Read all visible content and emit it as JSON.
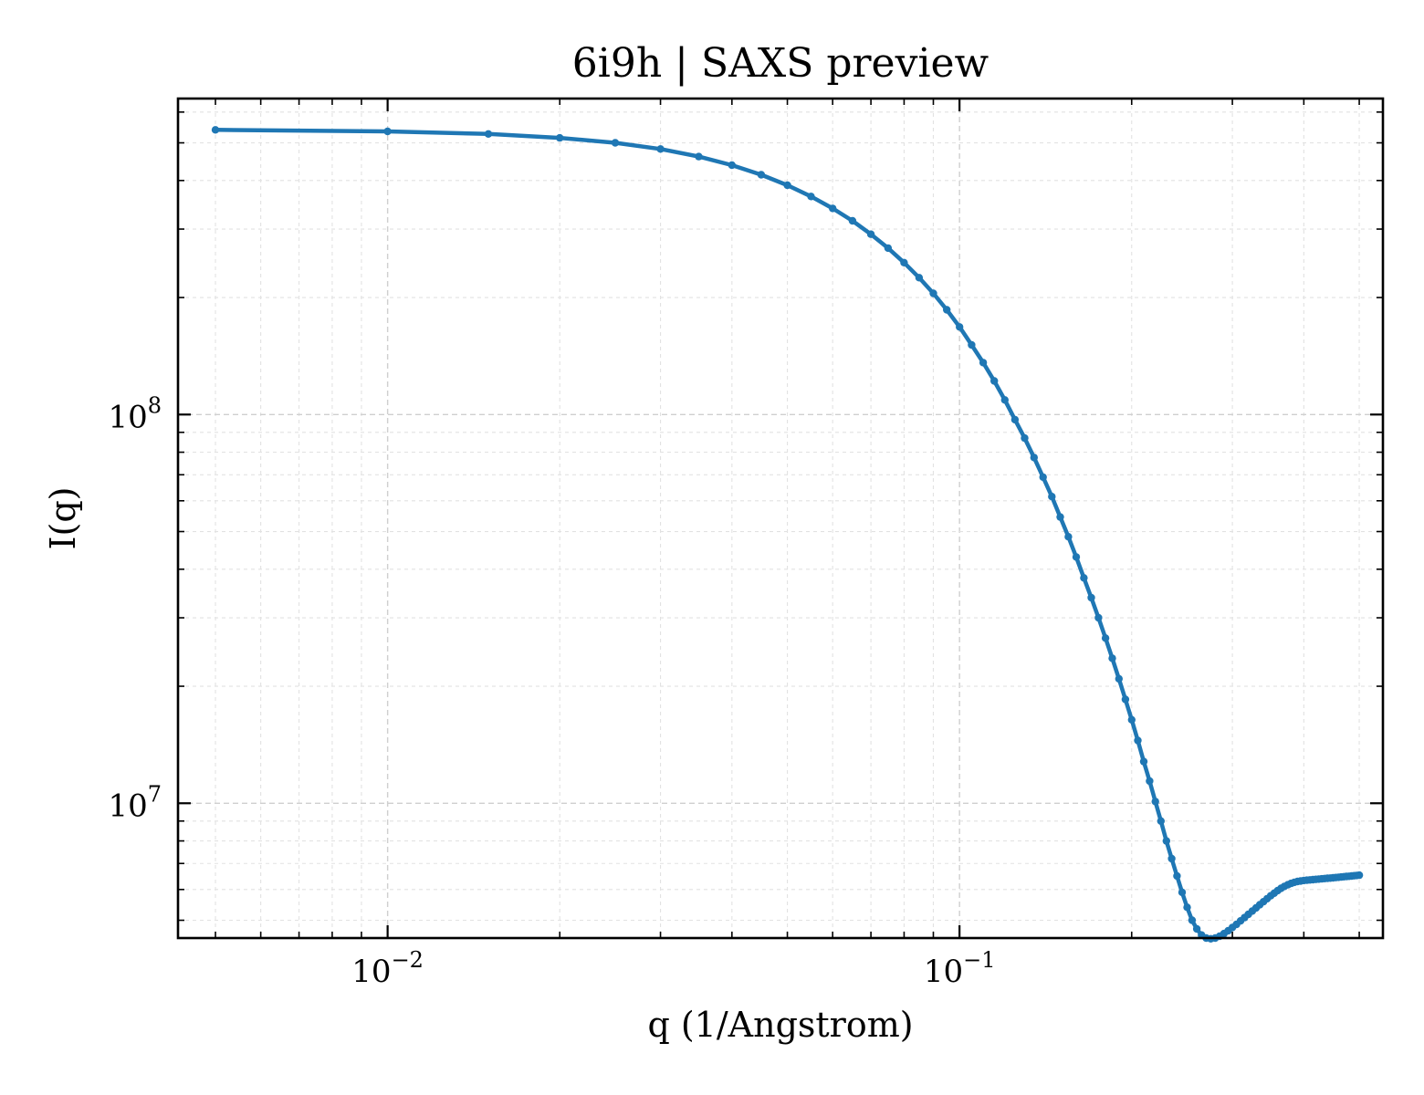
{
  "chart_data": {
    "type": "line",
    "title": "6i9h | SAXS preview",
    "xlabel": "q (1/Angstrom)",
    "ylabel": "I(q)",
    "xscale": "log",
    "yscale": "log",
    "xlim": [
      0.0043,
      0.55
    ],
    "ylim": [
      4500000,
      650000000
    ],
    "grid": true,
    "color": "#1f77b4",
    "x_ticks": [
      {
        "value": 0.01,
        "base": "10",
        "exp": "−2"
      },
      {
        "value": 0.1,
        "base": "10",
        "exp": "−1"
      }
    ],
    "y_ticks": [
      {
        "value": 10000000,
        "base": "10",
        "exp": "7"
      },
      {
        "value": 100000000,
        "base": "10",
        "exp": "8"
      }
    ],
    "series": [
      {
        "x": [
          0.005,
          0.01,
          0.015,
          0.02,
          0.025,
          0.03,
          0.035,
          0.04,
          0.045,
          0.05,
          0.055,
          0.06,
          0.065,
          0.07,
          0.075,
          0.08,
          0.085,
          0.09,
          0.095,
          0.1,
          0.105,
          0.11,
          0.115,
          0.12,
          0.125,
          0.13,
          0.135,
          0.14,
          0.145,
          0.15,
          0.155,
          0.16,
          0.165,
          0.17,
          0.175,
          0.18,
          0.185,
          0.19,
          0.195,
          0.2,
          0.205,
          0.21,
          0.215,
          0.22,
          0.225,
          0.23,
          0.235,
          0.24,
          0.245,
          0.25,
          0.255,
          0.26,
          0.265,
          0.27,
          0.275,
          0.28,
          0.285,
          0.29,
          0.295,
          0.3,
          0.305,
          0.31,
          0.315,
          0.32,
          0.325,
          0.33,
          0.335,
          0.34,
          0.345,
          0.35,
          0.355,
          0.36,
          0.365,
          0.37,
          0.375,
          0.38,
          0.385,
          0.39,
          0.395,
          0.4,
          0.405,
          0.41,
          0.415,
          0.42,
          0.425,
          0.43,
          0.435,
          0.44,
          0.445,
          0.45,
          0.455,
          0.46,
          0.465,
          0.47,
          0.475,
          0.48,
          0.485,
          0.49,
          0.495,
          0.5
        ],
        "y": [
          540000000,
          535000000,
          527000000,
          515000000,
          500000000,
          482000000,
          461000000,
          438000000,
          414000000,
          389000000,
          364000000,
          339000000,
          315000000,
          291000000,
          268000000,
          246000000,
          225000000,
          205000000,
          186000000,
          168000000,
          151000000,
          136000000,
          122000000,
          109000000,
          97000000,
          87000000,
          77500000,
          69000000,
          61500000,
          54500000,
          48500000,
          43000000,
          38000000,
          33800000,
          30000000,
          26600000,
          23600000,
          20900000,
          18500000,
          16400000,
          14500000,
          12800000,
          11400000,
          10100000,
          9000000,
          8000000,
          7200000,
          6500000,
          5900000,
          5400000,
          5000000,
          4750000,
          4580000,
          4500000,
          4480000,
          4500000,
          4550000,
          4620000,
          4700000,
          4790000,
          4880000,
          4980000,
          5080000,
          5180000,
          5280000,
          5380000,
          5480000,
          5580000,
          5680000,
          5780000,
          5870000,
          5960000,
          6040000,
          6110000,
          6170000,
          6220000,
          6260000,
          6290000,
          6310000,
          6330000,
          6340000,
          6350000,
          6360000,
          6370000,
          6380000,
          6390000,
          6400000,
          6410000,
          6420000,
          6430000,
          6440000,
          6450000,
          6460000,
          6470000,
          6480000,
          6490000,
          6500000,
          6510000,
          6520000,
          6530000
        ]
      }
    ]
  }
}
